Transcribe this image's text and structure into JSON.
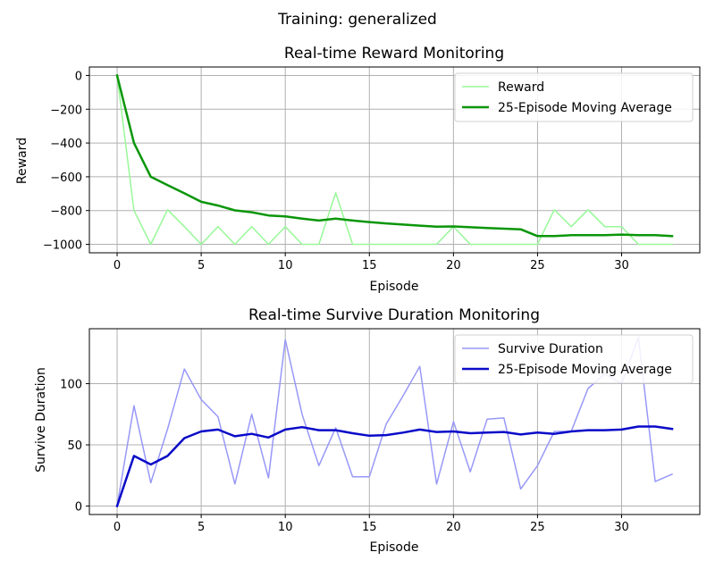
{
  "figure": {
    "suptitle": "Training: generalized"
  },
  "chart_data": [
    {
      "type": "line",
      "title": "Real-time Reward Monitoring",
      "xlabel": "Episode",
      "ylabel": "Reward",
      "xlim": [
        -1.65,
        34.65
      ],
      "ylim": [
        -1050,
        50
      ],
      "xticks": [
        0,
        5,
        10,
        15,
        20,
        25,
        30
      ],
      "yticks": [
        0,
        -200,
        -400,
        -600,
        -800,
        -1000
      ],
      "xtick_labels": [
        "0",
        "5",
        "10",
        "15",
        "20",
        "25",
        "30"
      ],
      "ytick_labels": [
        "0",
        "−200",
        "−400",
        "−600",
        "−800",
        "−1000"
      ],
      "grid": true,
      "legend_position": "upper right",
      "x": [
        0,
        1,
        2,
        3,
        4,
        5,
        6,
        7,
        8,
        9,
        10,
        11,
        12,
        13,
        14,
        15,
        16,
        17,
        18,
        19,
        20,
        21,
        22,
        23,
        24,
        25,
        26,
        27,
        28,
        29,
        30,
        31,
        32,
        33
      ],
      "series": [
        {
          "name": "Reward",
          "color": "#98f898",
          "linewidth": 1.5,
          "values": [
            0,
            -800,
            -1000,
            -795,
            -895,
            -1000,
            -895,
            -1000,
            -895,
            -1000,
            -895,
            -1000,
            -1000,
            -695,
            -1000,
            -1000,
            -1000,
            -1000,
            -1000,
            -1000,
            -895,
            -1000,
            -1000,
            -1000,
            -1000,
            -1000,
            -795,
            -895,
            -795,
            -895,
            -895,
            -1000,
            -1000,
            -1000
          ]
        },
        {
          "name": "25-Episode Moving Average",
          "color": "#0a960a",
          "linewidth": 2.5,
          "values": [
            0,
            -400,
            -600,
            -649,
            -698,
            -748,
            -770,
            -799,
            -810,
            -829,
            -835,
            -848,
            -859,
            -848,
            -859,
            -868,
            -876,
            -883,
            -889,
            -895,
            -894,
            -899,
            -903,
            -907,
            -911,
            -951,
            -951,
            -946,
            -946,
            -946,
            -942,
            -946,
            -946,
            -951
          ]
        }
      ]
    },
    {
      "type": "line",
      "title": "Real-time Survive Duration Monitoring",
      "xlabel": "Episode",
      "ylabel": "Survive Duration",
      "xlim": [
        -1.65,
        34.65
      ],
      "ylim": [
        -6.9,
        144.9
      ],
      "xticks": [
        0,
        5,
        10,
        15,
        20,
        25,
        30
      ],
      "yticks": [
        0,
        50,
        100
      ],
      "xtick_labels": [
        "0",
        "5",
        "10",
        "15",
        "20",
        "25",
        "30"
      ],
      "ytick_labels": [
        "0",
        "50",
        "100"
      ],
      "grid": true,
      "legend_position": "upper right",
      "x": [
        0,
        1,
        2,
        3,
        4,
        5,
        6,
        7,
        8,
        9,
        10,
        11,
        12,
        13,
        14,
        15,
        16,
        17,
        18,
        19,
        20,
        21,
        22,
        23,
        24,
        25,
        26,
        27,
        28,
        29,
        30,
        31,
        32,
        33
      ],
      "series": [
        {
          "name": "Survive Duration",
          "color": "#9898f8",
          "linewidth": 1.5,
          "values": [
            0,
            82,
            19,
            63,
            112,
            87,
            73,
            18,
            75,
            23,
            136,
            75,
            33,
            64,
            24,
            24,
            67,
            90,
            114,
            18,
            69,
            28,
            71,
            72,
            14,
            33,
            61,
            61,
            96,
            108,
            100,
            138,
            20,
            26
          ]
        },
        {
          "name": "25-Episode Moving Average",
          "color": "#0a0ac8",
          "linewidth": 2.5,
          "values": [
            0,
            41,
            34,
            41,
            55.5,
            61,
            62.5,
            57,
            59,
            56,
            62.5,
            64.5,
            62,
            62,
            59.5,
            57.5,
            58,
            60,
            62.5,
            60.5,
            61,
            59.5,
            60,
            60.5,
            58.5,
            60,
            59,
            61,
            62,
            62,
            62.5,
            65,
            65,
            63
          ]
        }
      ]
    }
  ]
}
